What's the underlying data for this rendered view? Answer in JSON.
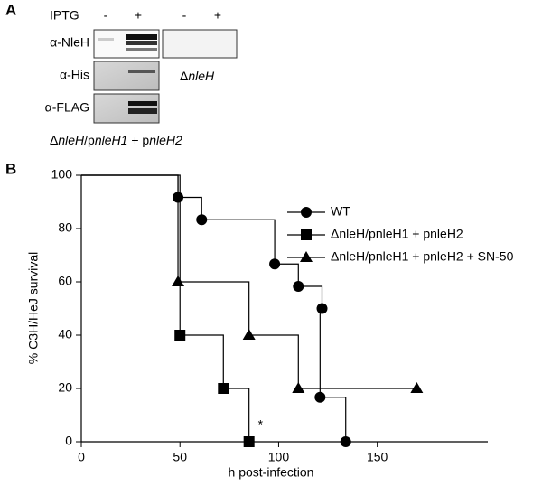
{
  "panel_labels": [
    "A",
    "B"
  ],
  "panel_a": {
    "iptg_label": "IPTG",
    "lanes": [
      "-",
      "+",
      "-",
      "+"
    ],
    "antibodies": [
      "α-NleH",
      "α-His",
      "α-FLAG"
    ],
    "strain_right": [
      "Δ",
      "nleH"
    ],
    "strain_left": [
      "Δ",
      "nleH",
      "/p",
      "nleH1",
      " + p",
      "nleH2"
    ]
  },
  "chart_data": {
    "type": "step",
    "xlabel": "h post-infection",
    "ylabel": "% C3H/HeJ survival",
    "xlim": [
      0,
      206
    ],
    "xticks": [
      0,
      50,
      100,
      150
    ],
    "ylim": [
      0,
      100
    ],
    "yticks": [
      0,
      20,
      40,
      60,
      80,
      100
    ],
    "annotation": "*",
    "legend": "upper right",
    "series": [
      {
        "name": "WT",
        "color": "#000000",
        "marker": "circle",
        "x": [
          0,
          49,
          61,
          98,
          110,
          122,
          121,
          134
        ],
        "values": [
          100,
          91.7,
          83.3,
          66.7,
          58.3,
          50,
          16.7,
          0
        ]
      },
      {
        "name": "ΔnleH/pnleH1 + pnleH2",
        "color": "#000000",
        "marker": "square",
        "x": [
          0,
          50,
          72,
          85
        ],
        "values": [
          100,
          40,
          20,
          0
        ]
      },
      {
        "name": "ΔnleH/pnleH1 + pnleH2 + SN-50",
        "color": "#000000",
        "marker": "triangle",
        "x": [
          0,
          49,
          85,
          110,
          170
        ],
        "values": [
          100,
          60,
          40,
          20,
          20
        ]
      }
    ]
  }
}
